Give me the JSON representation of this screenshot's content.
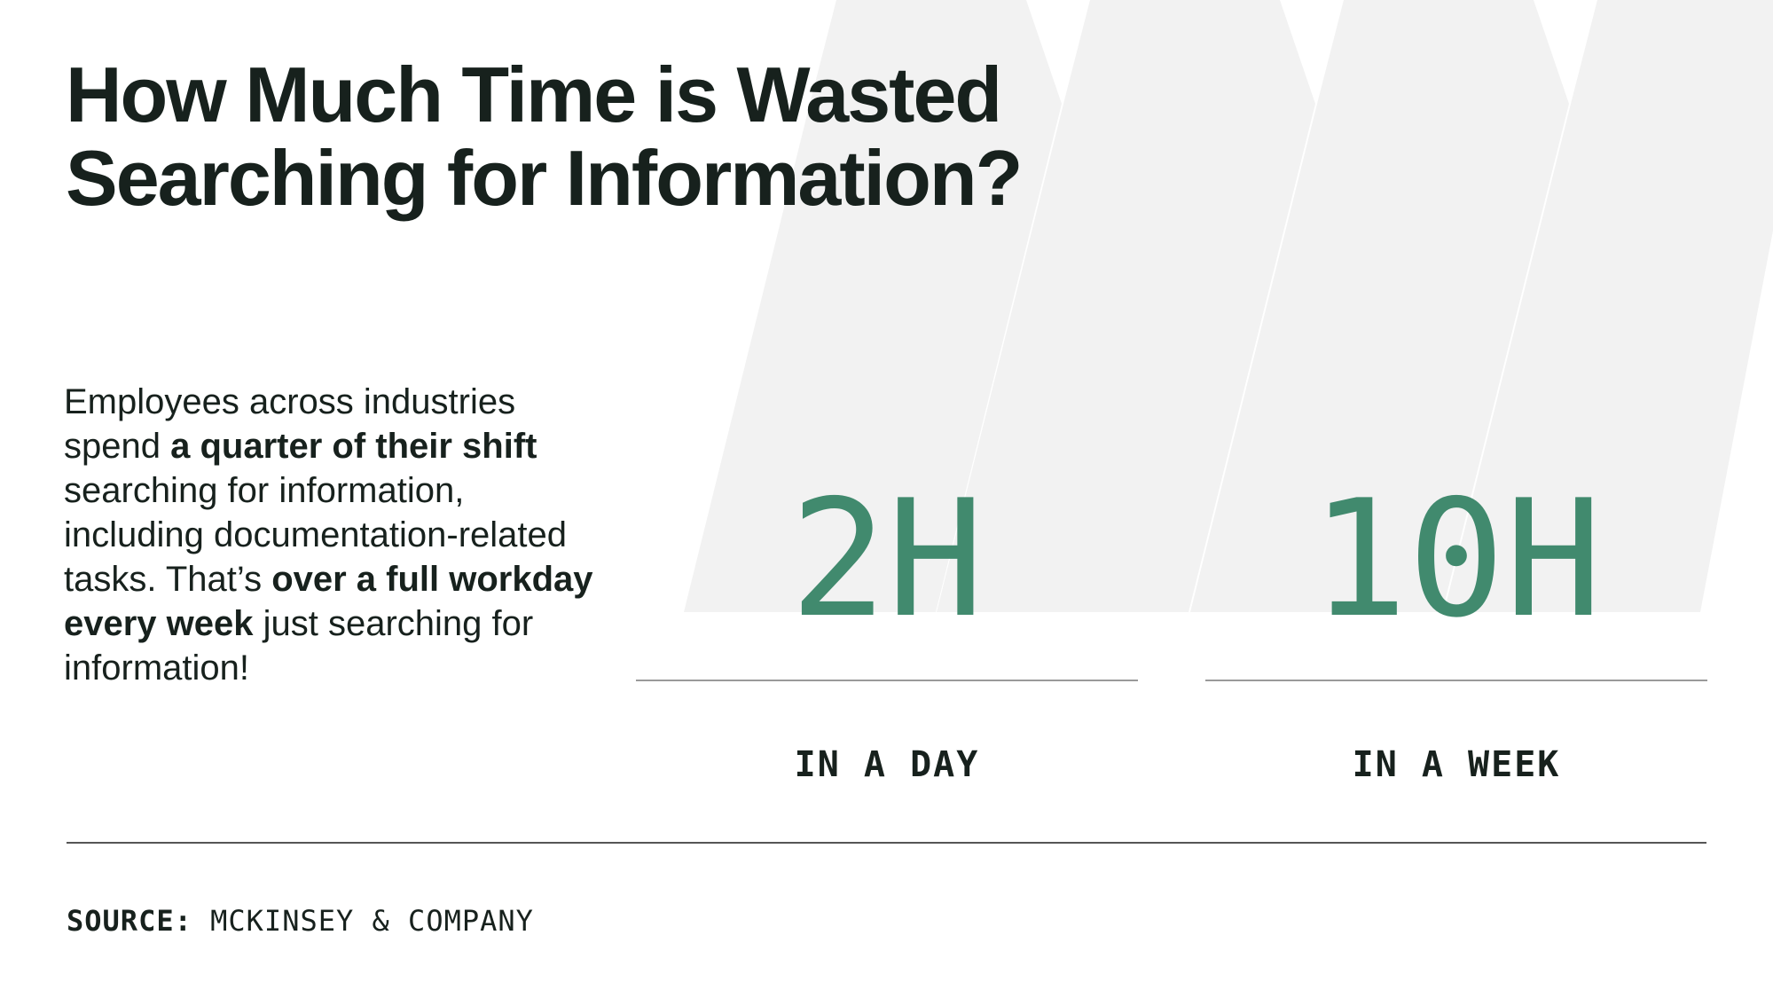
{
  "title": {
    "line1": "How Much Time is Wasted",
    "line2": "Searching for Information?"
  },
  "body": {
    "part1": "Employees across industries spend ",
    "bold1": "a quarter of their shift",
    "part2": " searching for information, including documentation-related tasks. That’s ",
    "bold2": "over a full workday every week",
    "part3": " just searching for information!"
  },
  "stats": [
    {
      "value": "2H",
      "label": "IN A DAY"
    },
    {
      "value": "10H",
      "label": "IN A WEEK"
    }
  ],
  "source": {
    "label": "SOURCE:",
    "text": "MCKINSEY & COMPANY"
  },
  "colors": {
    "accent": "#418a6e",
    "text": "#17211d",
    "chevron": "#f2f2f2",
    "background": "#ffffff"
  }
}
